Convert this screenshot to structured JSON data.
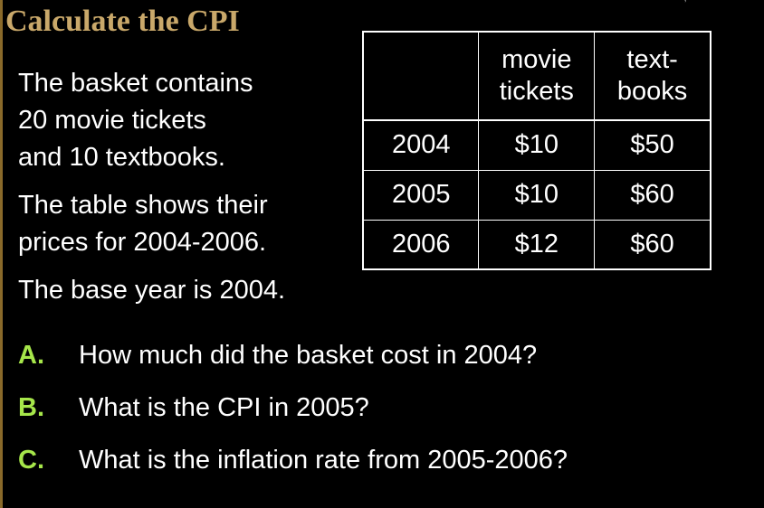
{
  "title": "Calculate the CPI",
  "corner_mark": "’",
  "intro": {
    "p1": [
      "The basket contains",
      "20 movie tickets",
      "and 10 textbooks."
    ],
    "p2": [
      "The table shows their",
      "prices for 2004-2006."
    ],
    "p3": "The base year is 2004."
  },
  "table": {
    "headers": [
      "",
      [
        "movie",
        "tickets"
      ],
      [
        "text-",
        "books"
      ]
    ],
    "rows": [
      {
        "year": "2004",
        "movie": "$10",
        "textbook": "$50"
      },
      {
        "year": "2005",
        "movie": "$10",
        "textbook": "$60"
      },
      {
        "year": "2006",
        "movie": "$12",
        "textbook": "$60"
      }
    ]
  },
  "questions": [
    {
      "letter": "A.",
      "text": "How much did the basket cost in 2004?"
    },
    {
      "letter": "B.",
      "text": "What is the CPI in 2005?"
    },
    {
      "letter": "C.",
      "text": "What is the inflation rate from 2005-2006?"
    }
  ],
  "colors": {
    "background": "#000000",
    "title": "#c9a86a",
    "question_letter": "#a6e64a",
    "text": "#ffffff"
  }
}
